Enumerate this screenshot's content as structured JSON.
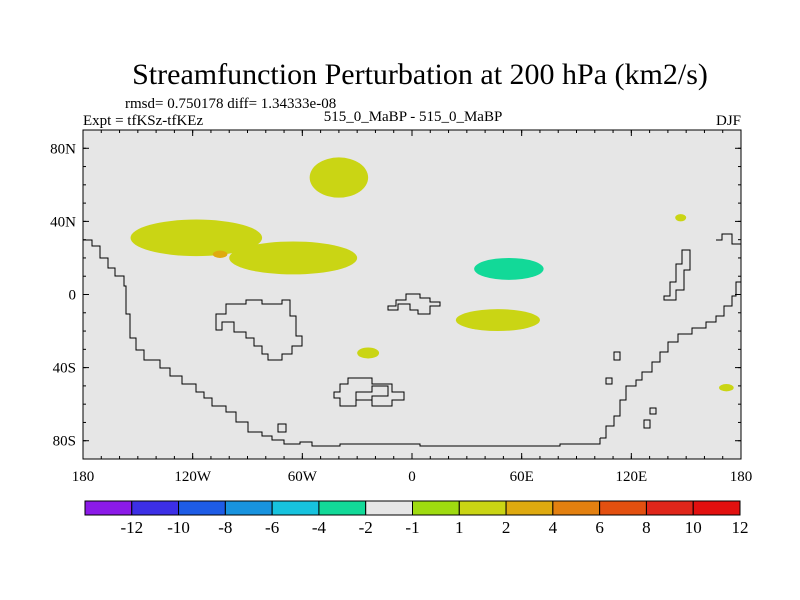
{
  "chart_data": {
    "type": "heatmap",
    "title": "Streamfunction Perturbation at 200 hPa (km2/s)",
    "stats_line": "rmsd= 0.750178 diff= 1.34333e-08",
    "left_label": "Expt = tfKSz-tfKEz",
    "center_label": "515_0_MaBP - 515_0_MaBP",
    "right_label": "DJF",
    "x_axis": {
      "range": [
        -180,
        180
      ],
      "ticks": [
        {
          "value": -180,
          "label": "180"
        },
        {
          "value": -120,
          "label": "120W"
        },
        {
          "value": -60,
          "label": "60W"
        },
        {
          "value": 0,
          "label": "0"
        },
        {
          "value": 60,
          "label": "60E"
        },
        {
          "value": 120,
          "label": "120E"
        },
        {
          "value": 180,
          "label": "180"
        }
      ]
    },
    "y_axis": {
      "range": [
        -90,
        90
      ],
      "ticks": [
        {
          "value": 80,
          "label": "80N"
        },
        {
          "value": 40,
          "label": "40N"
        },
        {
          "value": 0,
          "label": "0"
        },
        {
          "value": -40,
          "label": "40S"
        },
        {
          "value": -80,
          "label": "80S"
        }
      ]
    },
    "colorbar": {
      "colors": [
        "#8b1ae8",
        "#3c2fe6",
        "#1e5ce6",
        "#1893df",
        "#17c3de",
        "#12d998",
        "#e6e6e6",
        "#9fdb10",
        "#cad514",
        "#dfaa10",
        "#e38010",
        "#e35010",
        "#e0261a",
        "#e2100f"
      ],
      "levels": [
        "-12",
        "-10",
        "-8",
        "-6",
        "-4",
        "-2",
        "-1",
        "1",
        "2",
        "4",
        "6",
        "8",
        "10",
        "12"
      ]
    },
    "anomalies": [
      {
        "name": "arctic-atlantic-positive",
        "lon": -40,
        "lat": 64,
        "rx": 16,
        "ry": 11,
        "value": 1.5
      },
      {
        "name": "pacific-positive-band",
        "lon": -118,
        "lat": 31,
        "rx": 36,
        "ry": 10,
        "value": 1.5
      },
      {
        "name": "americas-positive-band",
        "lon": -65,
        "lat": 20,
        "rx": 35,
        "ry": 9,
        "value": 1.5
      },
      {
        "name": "pacific-local-max",
        "lon": -105,
        "lat": 22,
        "rx": 4,
        "ry": 2,
        "value": 3
      },
      {
        "name": "north-atlantic-negative",
        "lon": 0,
        "lat": 40,
        "rx": 9,
        "ry": 5,
        "value": -1.5
      },
      {
        "name": "asia-negative-core",
        "lon": 60,
        "lat": 18,
        "rx": 42,
        "ry": 11,
        "value": -1.5
      },
      {
        "name": "asia-negative-east",
        "lon": 99,
        "lat": 24,
        "rx": 14,
        "ry": 8,
        "value": -1.5
      },
      {
        "name": "asia-negative-inner",
        "lon": 53,
        "lat": 14,
        "rx": 19,
        "ry": 6,
        "value": -2.5
      },
      {
        "name": "indian-ocean-positive",
        "lon": 47,
        "lat": -14,
        "rx": 23,
        "ry": 6,
        "value": 1.5
      },
      {
        "name": "pacific-negative-small",
        "lon": 147,
        "lat": 42,
        "rx": 3,
        "ry": 2,
        "value": 1.5
      },
      {
        "name": "dateline-negative-north",
        "lon": 171,
        "lat": 42,
        "rx": 3,
        "ry": 3,
        "value": -1.5
      },
      {
        "name": "dateline-negative-mid",
        "lon": 170,
        "lat": 27,
        "rx": 5,
        "ry": 5,
        "value": -1.5
      },
      {
        "name": "south-america-negative",
        "lon": -98,
        "lat": -26,
        "rx": 3,
        "ry": 3,
        "value": -1.5
      },
      {
        "name": "south-atlantic-positive",
        "lon": -24,
        "lat": -32,
        "rx": 6,
        "ry": 3,
        "value": 1.5
      },
      {
        "name": "southern-ocean-negative",
        "lon": -20,
        "lat": -51,
        "rx": 6,
        "ry": 2,
        "value": -1.5
      },
      {
        "name": "south-pacific-positive",
        "lon": 172,
        "lat": -51,
        "rx": 4,
        "ry": 2,
        "value": 1.5
      }
    ]
  }
}
